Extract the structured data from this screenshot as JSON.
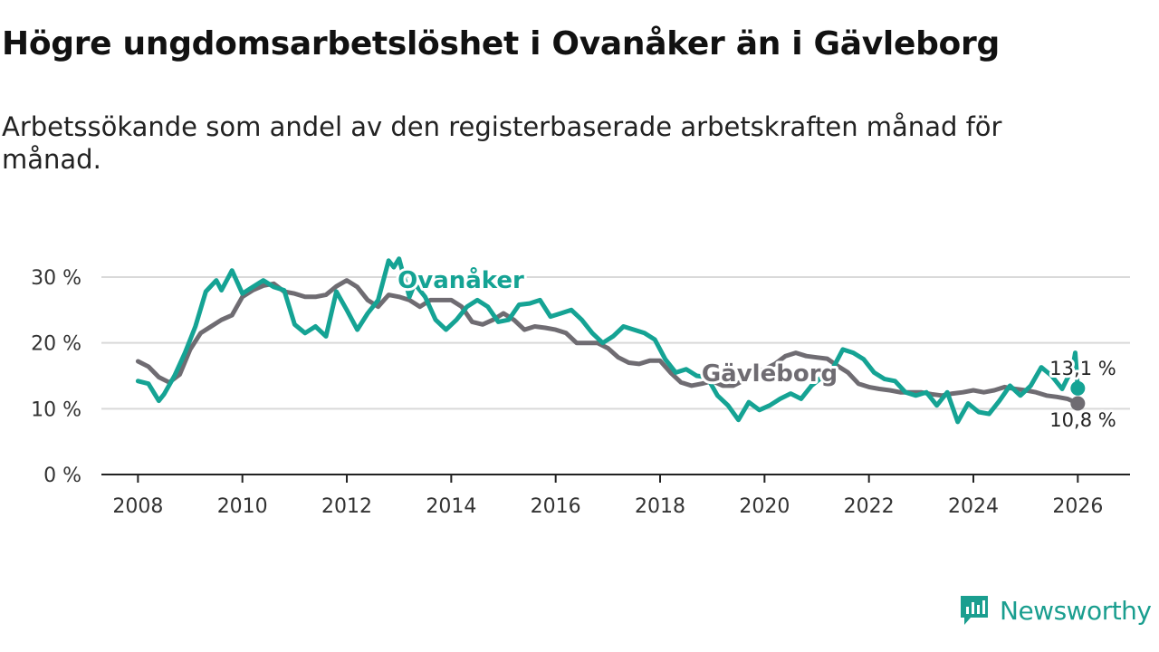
{
  "header": {
    "title": "Högre ungdomsarbetslöshet i Ovanåker än i Gävleborg",
    "subtitle": "Arbetssökande som andel av den registerbaserade arbetskraften månad för månad."
  },
  "brand": {
    "name": "Newsworthy",
    "color": "#1a9e8f"
  },
  "chart_data": {
    "type": "line",
    "title": "Högre ungdomsarbetslöshet i Ovanåker än i Gävleborg",
    "xlabel": "",
    "ylabel": "",
    "xlim": [
      2007.3,
      2027.0
    ],
    "ylim": [
      0,
      30
    ],
    "grid": true,
    "yticks": [
      0,
      10,
      20,
      30
    ],
    "ytick_labels": [
      "0 %",
      "10 %",
      "20 %",
      "30 %"
    ],
    "xticks": [
      2008,
      2010,
      2012,
      2014,
      2016,
      2018,
      2020,
      2022,
      2024,
      2026
    ],
    "xtick_labels": [
      "2008",
      "2010",
      "2012",
      "2014",
      "2016",
      "2018",
      "2020",
      "2022",
      "2024",
      "2026"
    ],
    "series": [
      {
        "name": "Gävleborg",
        "color": "#6f6c72",
        "points": [
          [
            2008.0,
            17.2
          ],
          [
            2008.2,
            16.4
          ],
          [
            2008.4,
            14.8
          ],
          [
            2008.6,
            14.0
          ],
          [
            2008.8,
            15.2
          ],
          [
            2009.0,
            19.0
          ],
          [
            2009.2,
            21.5
          ],
          [
            2009.4,
            22.5
          ],
          [
            2009.6,
            23.5
          ],
          [
            2009.8,
            24.2
          ],
          [
            2010.0,
            27.0
          ],
          [
            2010.2,
            28.0
          ],
          [
            2010.4,
            28.7
          ],
          [
            2010.6,
            29.0
          ],
          [
            2010.8,
            27.8
          ],
          [
            2011.0,
            27.5
          ],
          [
            2011.2,
            27.0
          ],
          [
            2011.4,
            27.0
          ],
          [
            2011.6,
            27.3
          ],
          [
            2011.8,
            28.6
          ],
          [
            2012.0,
            29.5
          ],
          [
            2012.2,
            28.5
          ],
          [
            2012.4,
            26.5
          ],
          [
            2012.6,
            25.5
          ],
          [
            2012.8,
            27.3
          ],
          [
            2013.0,
            27.0
          ],
          [
            2013.2,
            26.5
          ],
          [
            2013.4,
            25.5
          ],
          [
            2013.6,
            26.5
          ],
          [
            2013.8,
            26.5
          ],
          [
            2014.0,
            26.5
          ],
          [
            2014.2,
            25.5
          ],
          [
            2014.4,
            23.2
          ],
          [
            2014.6,
            22.8
          ],
          [
            2014.8,
            23.5
          ],
          [
            2015.0,
            24.5
          ],
          [
            2015.2,
            23.5
          ],
          [
            2015.4,
            22.0
          ],
          [
            2015.6,
            22.5
          ],
          [
            2015.8,
            22.3
          ],
          [
            2016.0,
            22.0
          ],
          [
            2016.2,
            21.5
          ],
          [
            2016.4,
            20.0
          ],
          [
            2016.6,
            20.0
          ],
          [
            2016.8,
            20.0
          ],
          [
            2017.0,
            19.2
          ],
          [
            2017.2,
            17.8
          ],
          [
            2017.4,
            17.0
          ],
          [
            2017.6,
            16.8
          ],
          [
            2017.8,
            17.3
          ],
          [
            2018.0,
            17.3
          ],
          [
            2018.2,
            15.5
          ],
          [
            2018.4,
            14.0
          ],
          [
            2018.6,
            13.5
          ],
          [
            2018.8,
            13.8
          ],
          [
            2019.0,
            14.2
          ],
          [
            2019.2,
            13.5
          ],
          [
            2019.4,
            13.5
          ],
          [
            2019.6,
            14.3
          ],
          [
            2019.8,
            15.5
          ],
          [
            2020.0,
            16.0
          ],
          [
            2020.2,
            16.8
          ],
          [
            2020.4,
            18.0
          ],
          [
            2020.6,
            18.5
          ],
          [
            2020.8,
            18.0
          ],
          [
            2021.0,
            17.8
          ],
          [
            2021.2,
            17.6
          ],
          [
            2021.4,
            16.5
          ],
          [
            2021.6,
            15.5
          ],
          [
            2021.8,
            13.8
          ],
          [
            2022.0,
            13.3
          ],
          [
            2022.2,
            13.0
          ],
          [
            2022.4,
            12.8
          ],
          [
            2022.6,
            12.5
          ],
          [
            2022.8,
            12.5
          ],
          [
            2023.0,
            12.5
          ],
          [
            2023.2,
            12.2
          ],
          [
            2023.4,
            12.0
          ],
          [
            2023.6,
            12.3
          ],
          [
            2023.8,
            12.5
          ],
          [
            2024.0,
            12.8
          ],
          [
            2024.2,
            12.5
          ],
          [
            2024.4,
            12.8
          ],
          [
            2024.6,
            13.3
          ],
          [
            2024.8,
            13.0
          ],
          [
            2025.0,
            12.8
          ],
          [
            2025.2,
            12.5
          ],
          [
            2025.4,
            12.0
          ],
          [
            2025.6,
            11.8
          ],
          [
            2025.8,
            11.5
          ],
          [
            2026.0,
            10.8
          ]
        ],
        "end_label": "10,8 %",
        "inline_label": "Gävleborg"
      },
      {
        "name": "Ovanåker",
        "color": "#15a394",
        "points": [
          [
            2008.0,
            14.2
          ],
          [
            2008.2,
            13.8
          ],
          [
            2008.4,
            11.2
          ],
          [
            2008.5,
            12.2
          ],
          [
            2008.7,
            15.0
          ],
          [
            2008.9,
            18.5
          ],
          [
            2009.1,
            22.5
          ],
          [
            2009.3,
            27.8
          ],
          [
            2009.5,
            29.5
          ],
          [
            2009.6,
            28.0
          ],
          [
            2009.8,
            31.0
          ],
          [
            2010.0,
            27.5
          ],
          [
            2010.2,
            28.5
          ],
          [
            2010.4,
            29.5
          ],
          [
            2010.6,
            28.5
          ],
          [
            2010.8,
            28.0
          ],
          [
            2011.0,
            22.8
          ],
          [
            2011.2,
            21.5
          ],
          [
            2011.4,
            22.5
          ],
          [
            2011.6,
            21.0
          ],
          [
            2011.8,
            27.8
          ],
          [
            2012.0,
            25.0
          ],
          [
            2012.2,
            22.0
          ],
          [
            2012.4,
            24.5
          ],
          [
            2012.6,
            26.5
          ],
          [
            2012.8,
            32.5
          ],
          [
            2012.9,
            31.5
          ],
          [
            2013.0,
            32.8
          ],
          [
            2013.2,
            27.0
          ],
          [
            2013.3,
            29.0
          ],
          [
            2013.5,
            27.0
          ],
          [
            2013.7,
            23.5
          ],
          [
            2013.9,
            22.0
          ],
          [
            2014.1,
            23.5
          ],
          [
            2014.3,
            25.5
          ],
          [
            2014.5,
            26.5
          ],
          [
            2014.7,
            25.5
          ],
          [
            2014.9,
            23.2
          ],
          [
            2015.1,
            23.5
          ],
          [
            2015.3,
            25.8
          ],
          [
            2015.5,
            26.0
          ],
          [
            2015.7,
            26.5
          ],
          [
            2015.9,
            24.0
          ],
          [
            2016.1,
            24.5
          ],
          [
            2016.3,
            25.0
          ],
          [
            2016.5,
            23.5
          ],
          [
            2016.7,
            21.5
          ],
          [
            2016.9,
            20.0
          ],
          [
            2017.1,
            21.0
          ],
          [
            2017.3,
            22.5
          ],
          [
            2017.5,
            22.0
          ],
          [
            2017.7,
            21.5
          ],
          [
            2017.9,
            20.5
          ],
          [
            2018.1,
            17.5
          ],
          [
            2018.3,
            15.5
          ],
          [
            2018.5,
            16.0
          ],
          [
            2018.7,
            15.0
          ],
          [
            2018.9,
            14.8
          ],
          [
            2019.1,
            12.0
          ],
          [
            2019.3,
            10.5
          ],
          [
            2019.5,
            8.3
          ],
          [
            2019.7,
            11.0
          ],
          [
            2019.9,
            9.8
          ],
          [
            2020.1,
            10.5
          ],
          [
            2020.3,
            11.5
          ],
          [
            2020.5,
            12.3
          ],
          [
            2020.7,
            11.5
          ],
          [
            2020.9,
            13.5
          ],
          [
            2021.1,
            14.8
          ],
          [
            2021.3,
            16.0
          ],
          [
            2021.5,
            19.0
          ],
          [
            2021.7,
            18.5
          ],
          [
            2021.9,
            17.5
          ],
          [
            2022.1,
            15.5
          ],
          [
            2022.3,
            14.5
          ],
          [
            2022.5,
            14.2
          ],
          [
            2022.7,
            12.5
          ],
          [
            2022.9,
            12.0
          ],
          [
            2023.1,
            12.5
          ],
          [
            2023.3,
            10.5
          ],
          [
            2023.5,
            12.5
          ],
          [
            2023.7,
            8.0
          ],
          [
            2023.9,
            10.8
          ],
          [
            2024.1,
            9.5
          ],
          [
            2024.3,
            9.2
          ],
          [
            2024.5,
            11.2
          ],
          [
            2024.7,
            13.5
          ],
          [
            2024.9,
            12.0
          ],
          [
            2025.1,
            13.5
          ],
          [
            2025.3,
            16.3
          ],
          [
            2025.5,
            15.0
          ],
          [
            2025.7,
            13.0
          ],
          [
            2025.9,
            16.2
          ],
          [
            2025.95,
            18.5
          ],
          [
            2026.0,
            13.1
          ]
        ],
        "end_label": "13,1 %",
        "inline_label": "Ovanåker"
      }
    ]
  }
}
